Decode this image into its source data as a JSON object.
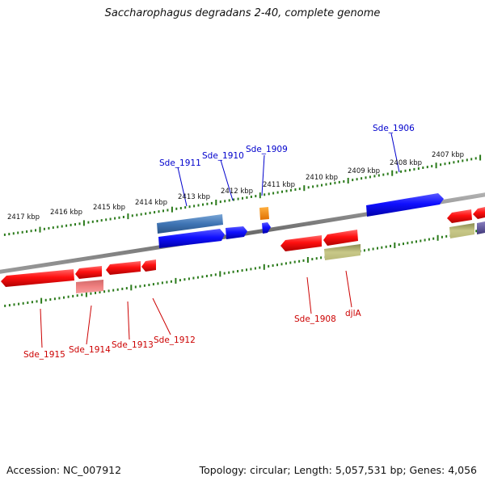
{
  "title": "Saccharophagus degradans 2-40, complete genome",
  "footer": {
    "accession": "Accession: NC_007912",
    "topology": "Topology: circular; Length: 5,057,531 bp; Genes: 4,056"
  },
  "colors": {
    "backbone": "#808080",
    "tick": "#2a7a1a",
    "forward_gene": "#0000ff",
    "reverse_gene": "#ff0000",
    "forward_label": "#0000cc",
    "reverse_label": "#cc0000",
    "leader_forward": "#0000cc",
    "leader_reverse": "#cc0000"
  },
  "ruler_ticks": [
    "2417 kbp",
    "2416 kbp",
    "2415 kbp",
    "2414 kbp",
    "2413 kbp",
    "2412 kbp",
    "2411 kbp",
    "2410 kbp",
    "2409 kbp",
    "2408 kbp",
    "2407 kbp"
  ],
  "forward_labels": [
    "Sde_1911",
    "Sde_1910",
    "Sde_1909",
    "Sde_1906"
  ],
  "reverse_labels": [
    "Sde_1915",
    "Sde_1914",
    "Sde_1913",
    "Sde_1912",
    "Sde_1908",
    "djlA"
  ]
}
